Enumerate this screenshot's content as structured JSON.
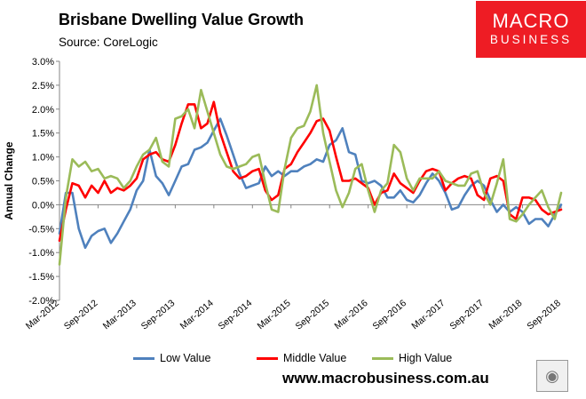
{
  "header": {
    "title": "Brisbane Dwelling Value Growth",
    "source": "Source: CoreLogic"
  },
  "logo": {
    "line1": "MACRO",
    "line2": "BUSINESS",
    "color": "#ee1c24",
    "icon": "wolf-icon"
  },
  "footer": {
    "url": "www.macrobusiness.com.au"
  },
  "chart_data": {
    "type": "line",
    "title": "Brisbane Dwelling Value Growth",
    "xlabel": "",
    "ylabel": "Annual Change",
    "ylim": [
      -2.0,
      3.0
    ],
    "yticks": [
      3.0,
      2.5,
      2.0,
      1.5,
      1.0,
      0.5,
      0.0,
      -0.5,
      -1.0,
      -1.5,
      -2.0
    ],
    "yticklabels": [
      "3.0%",
      "2.5%",
      "2.0%",
      "1.5%",
      "1.0%",
      "0.5%",
      "0.0%",
      "-0.5%",
      "-1.0%",
      "-1.5%",
      "-2.0%"
    ],
    "xtick_labels": [
      "Mar-2012",
      "Sep-2012",
      "Mar-2013",
      "Sep-2013",
      "Mar-2014",
      "Sep-2014",
      "Mar-2015",
      "Sep-2015",
      "Mar-2016",
      "Sep-2016",
      "Mar-2017",
      "Sep-2017",
      "Mar-2018",
      "Sep-2018"
    ],
    "period_start": "Mar-2012",
    "points_per_tick": 6,
    "series": [
      {
        "name": "Low Value",
        "color": "#4f81bd",
        "values": [
          -0.6,
          0.25,
          0.25,
          -0.5,
          -0.9,
          -0.65,
          -0.55,
          -0.5,
          -0.8,
          -0.6,
          -0.35,
          -0.1,
          0.3,
          0.5,
          1.15,
          0.6,
          0.45,
          0.2,
          0.5,
          0.8,
          0.85,
          1.15,
          1.2,
          1.3,
          1.55,
          1.8,
          1.45,
          1.05,
          0.65,
          0.35,
          0.4,
          0.45,
          0.8,
          0.6,
          0.7,
          0.6,
          0.7,
          0.7,
          0.8,
          0.85,
          0.95,
          0.9,
          1.25,
          1.35,
          1.6,
          1.1,
          1.05,
          0.5,
          0.45,
          0.5,
          0.4,
          0.15,
          0.15,
          0.3,
          0.1,
          0.05,
          0.2,
          0.45,
          0.65,
          0.5,
          0.25,
          -0.1,
          -0.05,
          0.2,
          0.4,
          0.5,
          0.4,
          0.1,
          -0.15,
          0.0,
          -0.15,
          -0.05,
          -0.15,
          -0.4,
          -0.3,
          -0.3,
          -0.45,
          -0.2,
          0.0
        ]
      },
      {
        "name": "Middle Value",
        "color": "#ff0000",
        "values": [
          -0.75,
          -0.1,
          0.45,
          0.4,
          0.15,
          0.4,
          0.25,
          0.5,
          0.25,
          0.35,
          0.3,
          0.4,
          0.55,
          0.95,
          1.05,
          1.1,
          0.95,
          0.9,
          1.25,
          1.7,
          2.1,
          2.1,
          1.6,
          1.7,
          2.15,
          1.5,
          1.1,
          0.7,
          0.55,
          0.6,
          0.7,
          0.75,
          0.3,
          0.1,
          0.2,
          0.75,
          0.85,
          1.1,
          1.3,
          1.5,
          1.75,
          1.8,
          1.55,
          1.0,
          0.5,
          0.5,
          0.55,
          0.45,
          0.35,
          0.0,
          0.25,
          0.3,
          0.65,
          0.45,
          0.35,
          0.25,
          0.5,
          0.7,
          0.75,
          0.7,
          0.3,
          0.45,
          0.55,
          0.6,
          0.55,
          0.2,
          0.1,
          0.55,
          0.6,
          0.5,
          -0.2,
          -0.3,
          0.15,
          0.15,
          0.1,
          -0.1,
          -0.2,
          -0.15,
          -0.1
        ]
      },
      {
        "name": "High Value",
        "color": "#9bbb59",
        "values": [
          -1.25,
          0.15,
          0.95,
          0.8,
          0.9,
          0.7,
          0.75,
          0.55,
          0.6,
          0.55,
          0.35,
          0.5,
          0.8,
          1.05,
          1.15,
          1.4,
          0.9,
          0.8,
          1.8,
          1.85,
          2.0,
          1.6,
          2.4,
          1.95,
          1.5,
          1.05,
          0.8,
          0.75,
          0.8,
          0.85,
          1.0,
          1.05,
          0.45,
          -0.1,
          -0.15,
          0.75,
          1.4,
          1.6,
          1.65,
          1.95,
          2.5,
          1.5,
          0.9,
          0.3,
          -0.05,
          0.25,
          0.75,
          0.85,
          0.3,
          -0.15,
          0.3,
          0.45,
          1.25,
          1.1,
          0.55,
          0.3,
          0.55,
          0.55,
          0.55,
          0.7,
          0.5,
          0.45,
          0.4,
          0.4,
          0.65,
          0.7,
          0.25,
          0.0,
          0.45,
          0.95,
          -0.3,
          -0.35,
          -0.2,
          0.0,
          0.15,
          0.3,
          -0.05,
          -0.3,
          0.25
        ]
      }
    ]
  }
}
